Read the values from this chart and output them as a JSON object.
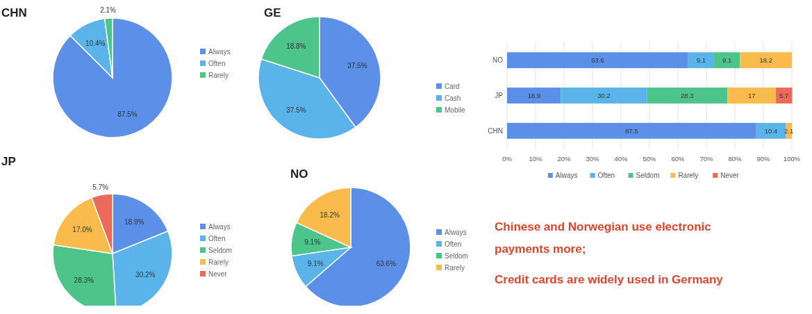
{
  "chart_data": [
    {
      "type": "pie",
      "title": "CHN",
      "categories": [
        "Always",
        "Often",
        "Rarely"
      ],
      "values": [
        87.5,
        10.4,
        2.1
      ],
      "colors": [
        "#5b8fe8",
        "#5ab4ea",
        "#4cc48a"
      ],
      "value_labels": [
        "87.5%",
        "10.4%",
        "2.1%"
      ],
      "legend": "right"
    },
    {
      "type": "pie",
      "title": "GE",
      "categories": [
        "Card",
        "Cash",
        "Mobile"
      ],
      "values": [
        37.5,
        37.5,
        18.8
      ],
      "colors": [
        "#5b8fe8",
        "#5ab4ea",
        "#4cc48a"
      ],
      "value_labels": [
        "37.5%",
        "37.5%",
        "18.8%"
      ],
      "legend": "right"
    },
    {
      "type": "bar",
      "orientation": "horizontal",
      "stacked": true,
      "categories": [
        "NO",
        "JP",
        "CHN"
      ],
      "xlim": [
        0,
        100
      ],
      "xticks": [
        {
          "value": 0,
          "label": "0%"
        },
        {
          "value": 10,
          "label": "10%"
        },
        {
          "value": 20,
          "label": "20%"
        },
        {
          "value": 30,
          "label": "30%"
        },
        {
          "value": 40,
          "label": "40%"
        },
        {
          "value": 50,
          "label": "50%"
        },
        {
          "value": 60,
          "label": "60%"
        },
        {
          "value": 70,
          "label": "70%"
        },
        {
          "value": 80,
          "label": "80%"
        },
        {
          "value": 90,
          "label": "90%"
        },
        {
          "value": 100,
          "label": "100%"
        }
      ],
      "grid": "x",
      "legend": "bottom",
      "data_labels": true,
      "series": [
        {
          "name": "Always",
          "color": "#5b8fe8",
          "values": [
            63.6,
            18.9,
            87.5
          ]
        },
        {
          "name": "Often",
          "color": "#5ab4ea",
          "values": [
            9.1,
            30.2,
            10.4
          ]
        },
        {
          "name": "Seldom",
          "color": "#4cc48a",
          "values": [
            9.1,
            28.3,
            null
          ]
        },
        {
          "name": "Rarely",
          "color": "#f9bb4c",
          "values": [
            18.2,
            17,
            2.1
          ]
        },
        {
          "name": "Never",
          "color": "#ea6b5a",
          "values": [
            null,
            5.7,
            null
          ]
        }
      ]
    },
    {
      "type": "pie",
      "title": "JP",
      "categories": [
        "Always",
        "Often",
        "Seldom",
        "Rarely",
        "Never"
      ],
      "values": [
        18.9,
        30.2,
        28.3,
        17.0,
        5.7
      ],
      "colors": [
        "#5b8fe8",
        "#5ab4ea",
        "#4cc48a",
        "#f9bb4c",
        "#ea6b5a"
      ],
      "value_labels": [
        "18.9%",
        "30.2%",
        "28.3%",
        "17.0%",
        "5.7%"
      ],
      "legend": "right"
    },
    {
      "type": "pie",
      "title": "NO",
      "categories": [
        "Always",
        "Often",
        "Seldom",
        "Rarely"
      ],
      "values": [
        63.6,
        9.1,
        9.1,
        18.2
      ],
      "colors": [
        "#5b8fe8",
        "#5ab4ea",
        "#4cc48a",
        "#f9bb4c"
      ],
      "value_labels": [
        "63.6%",
        "9.1%",
        "9.1%",
        "18.2%"
      ],
      "legend": "right"
    },
    {
      "type": "other",
      "annotations": [
        "Chinese and Norwegian use electronic",
        "payments more;",
        "Credit cards are widely used in Germany"
      ]
    }
  ]
}
